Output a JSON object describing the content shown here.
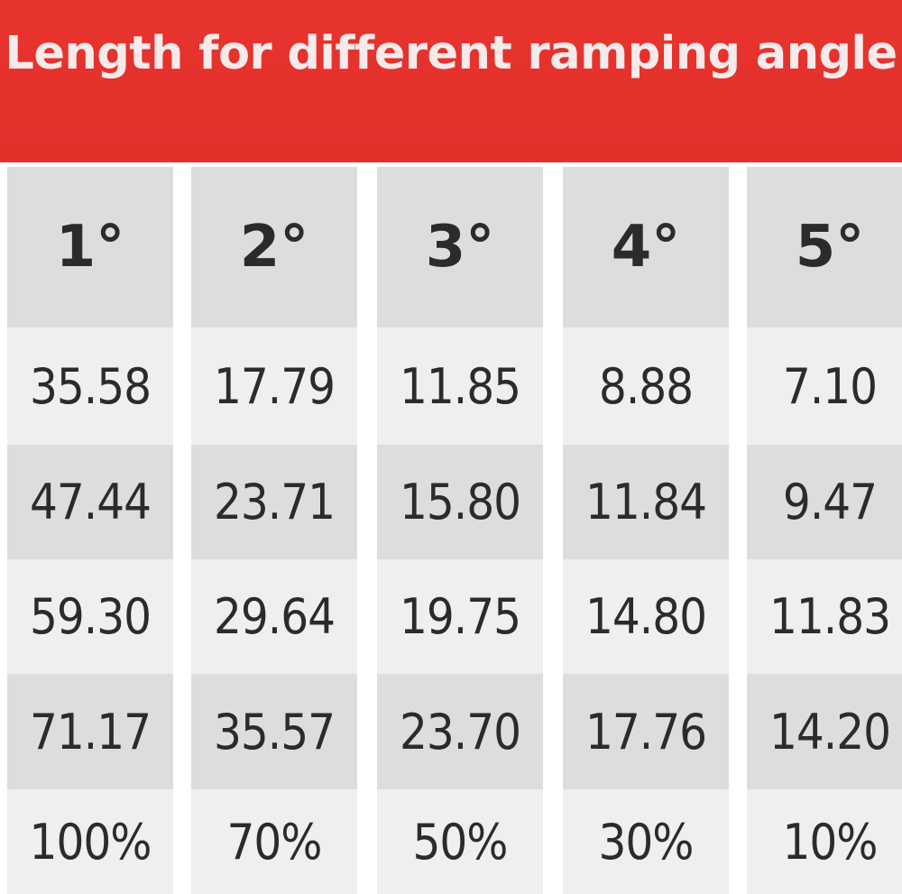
{
  "title": "Length for different ramping angle",
  "columns": [
    {
      "angle": "1°",
      "values": [
        "35.58",
        "47.44",
        "59.30",
        "71.17",
        "100%"
      ]
    },
    {
      "angle": "2°",
      "values": [
        "17.79",
        "23.71",
        "29.64",
        "35.57",
        "70%"
      ]
    },
    {
      "angle": "3°",
      "values": [
        "11.85",
        "15.80",
        "19.75",
        "23.70",
        "50%"
      ]
    },
    {
      "angle": "4°",
      "values": [
        "8.88",
        "11.84",
        "14.80",
        "17.76",
        "30%"
      ]
    },
    {
      "angle": "5°",
      "values": [
        "7.10",
        "9.47",
        "11.83",
        "14.20",
        "10%"
      ]
    }
  ],
  "colors": {
    "banner": "#e3302b",
    "title_text": "#f7eaea",
    "header_bg": "#dcdddf",
    "row_dark": "#dcdddf",
    "row_light": "#eeeff0",
    "text": "#2b2b2b"
  }
}
